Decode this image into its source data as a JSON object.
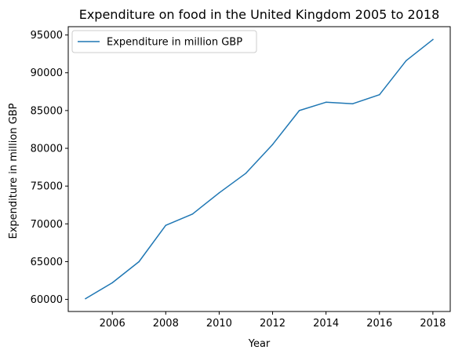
{
  "chart_data": {
    "type": "line",
    "title": "Expenditure on food in the United Kingdom 2005 to 2018",
    "xlabel": "Year",
    "ylabel": "Expenditure in million GBP",
    "x": [
      2005,
      2006,
      2007,
      2008,
      2009,
      2010,
      2011,
      2012,
      2013,
      2014,
      2015,
      2016,
      2017,
      2018
    ],
    "series": [
      {
        "name": "Expenditure in million GBP",
        "color": "#1f77b4",
        "values": [
          60100,
          62200,
          65000,
          69800,
          71300,
          74100,
          76700,
          80500,
          85000,
          86100,
          85900,
          87100,
          91600,
          94400
        ]
      }
    ],
    "xlim": [
      2004.35,
      2018.65
    ],
    "ylim": [
      58400,
      96100
    ],
    "xticks": [
      2006,
      2008,
      2010,
      2012,
      2014,
      2016,
      2018
    ],
    "yticks": [
      60000,
      65000,
      70000,
      75000,
      80000,
      85000,
      90000,
      95000
    ],
    "legend_position": "top-left",
    "grid": false
  }
}
